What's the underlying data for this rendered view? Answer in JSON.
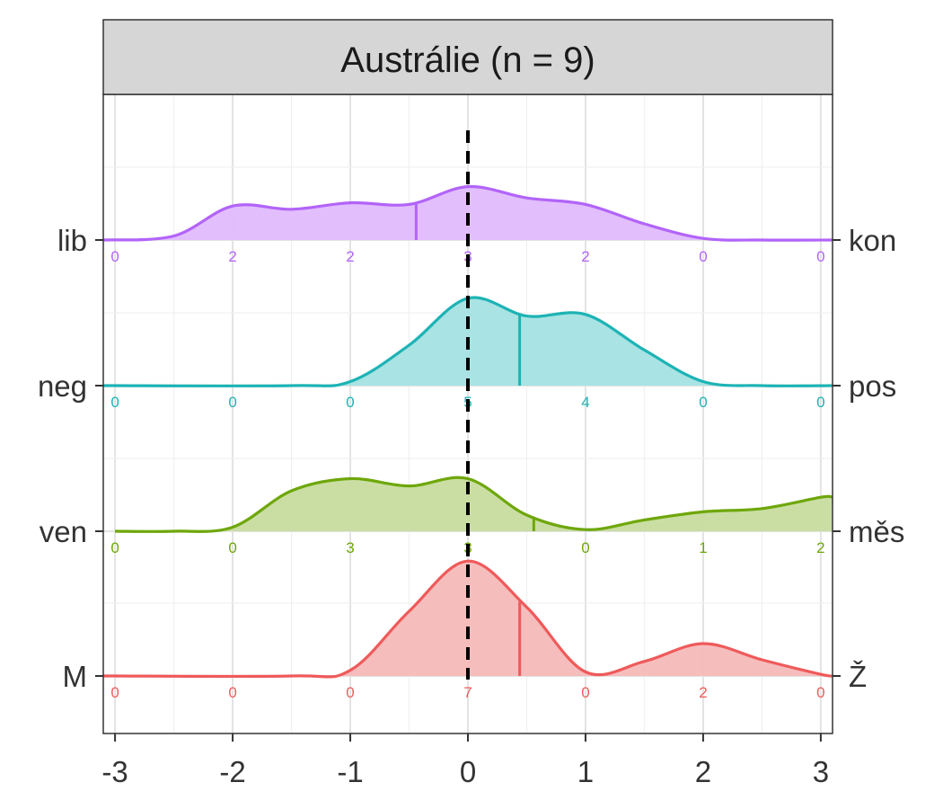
{
  "chart_data": {
    "type": "ridgeline",
    "title": "Austrálie (n = 9)",
    "xlabel": "",
    "ylabel": "",
    "xlim": [
      -3.1,
      3.1
    ],
    "x_ticks": [
      "-3",
      "-2",
      "-1",
      "0",
      "1",
      "2",
      "3"
    ],
    "x_tick_values": [
      -3,
      -2,
      -1,
      0,
      1,
      2,
      3
    ],
    "grid": true,
    "reference_line": {
      "x": 0,
      "style": "dashed",
      "color": "#000000"
    },
    "series": [
      {
        "name": "lib",
        "left_label": "lib",
        "right_label": "kon",
        "color": "#b264f8",
        "fill": "#e0bbfc",
        "mean": -0.44,
        "count_x": [
          -3,
          -2,
          -1,
          0,
          1,
          2,
          3
        ],
        "counts": [
          "0",
          "2",
          "2",
          "3",
          "2",
          "0",
          "0"
        ],
        "density": [
          [
            -3.1,
            0.0
          ],
          [
            -2.5,
            0.05
          ],
          [
            -2.0,
            0.42
          ],
          [
            -1.5,
            0.38
          ],
          [
            -1.0,
            0.46
          ],
          [
            -0.5,
            0.44
          ],
          [
            0.0,
            0.66
          ],
          [
            0.5,
            0.52
          ],
          [
            1.0,
            0.44
          ],
          [
            1.5,
            0.2
          ],
          [
            2.0,
            0.02
          ],
          [
            2.5,
            0.0
          ],
          [
            3.1,
            0.0
          ]
        ]
      },
      {
        "name": "neg",
        "left_label": "neg",
        "right_label": "pos",
        "color": "#1db3b5",
        "fill": "#a4e1e2",
        "mean": 0.44,
        "count_x": [
          -3,
          -2,
          -1,
          0,
          1,
          2,
          3
        ],
        "counts": [
          "0",
          "0",
          "0",
          "5",
          "4",
          "0",
          "0"
        ],
        "density": [
          [
            -3.1,
            0.0
          ],
          [
            -1.5,
            0.0
          ],
          [
            -1.0,
            0.05
          ],
          [
            -0.5,
            0.5
          ],
          [
            0.0,
            1.08
          ],
          [
            0.5,
            0.86
          ],
          [
            1.0,
            0.88
          ],
          [
            1.5,
            0.44
          ],
          [
            2.0,
            0.05
          ],
          [
            2.5,
            0.0
          ],
          [
            3.1,
            0.0
          ]
        ]
      },
      {
        "name": "ven",
        "left_label": "ven",
        "right_label": "měs",
        "color": "#6ea70a",
        "fill": "#c7dc9f",
        "mean": 0.56,
        "count_x": [
          -3,
          -2,
          -1,
          0,
          1,
          2,
          3
        ],
        "counts": [
          "0",
          "0",
          "3",
          "3",
          "0",
          "1",
          "2"
        ],
        "density": [
          [
            -3.0,
            0.0
          ],
          [
            -2.5,
            0.0
          ],
          [
            -2.0,
            0.05
          ],
          [
            -1.5,
            0.5
          ],
          [
            -1.0,
            0.65
          ],
          [
            -0.5,
            0.56
          ],
          [
            0.0,
            0.65
          ],
          [
            0.5,
            0.2
          ],
          [
            1.0,
            0.02
          ],
          [
            1.5,
            0.14
          ],
          [
            2.0,
            0.24
          ],
          [
            2.5,
            0.28
          ],
          [
            3.0,
            0.42
          ],
          [
            3.1,
            0.42
          ]
        ]
      },
      {
        "name": "M",
        "left_label": "M",
        "right_label": "Ž",
        "color": "#ef5a5a",
        "fill": "#f6b9b9",
        "mean": 0.44,
        "count_x": [
          -3,
          -2,
          -1,
          0,
          1,
          2,
          3
        ],
        "counts": [
          "0",
          "0",
          "0",
          "7",
          "0",
          "2",
          "0"
        ],
        "density": [
          [
            -3.1,
            0.0
          ],
          [
            -1.5,
            0.0
          ],
          [
            -1.0,
            0.07
          ],
          [
            -0.5,
            0.8
          ],
          [
            0.0,
            1.42
          ],
          [
            0.5,
            0.85
          ],
          [
            1.0,
            0.05
          ],
          [
            1.5,
            0.18
          ],
          [
            2.0,
            0.4
          ],
          [
            2.5,
            0.2
          ],
          [
            3.0,
            0.02
          ],
          [
            3.1,
            0.0
          ]
        ]
      }
    ]
  }
}
